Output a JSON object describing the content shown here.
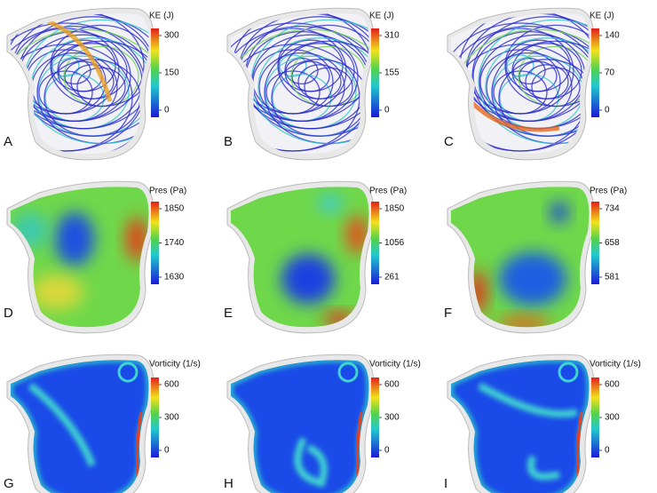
{
  "panels": [
    {
      "label": "A",
      "colorbar_title": "KE (J)",
      "ticks": [
        300,
        150,
        0
      ]
    },
    {
      "label": "B",
      "colorbar_title": "KE (J)",
      "ticks": [
        310,
        155,
        0
      ]
    },
    {
      "label": "C",
      "colorbar_title": "KE (J)",
      "ticks": [
        140,
        70,
        0
      ]
    },
    {
      "label": "D",
      "colorbar_title": "Pres (Pa)",
      "ticks": [
        1850,
        1740,
        1630
      ]
    },
    {
      "label": "E",
      "colorbar_title": "Pres (Pa)",
      "ticks": [
        1850,
        1056,
        261
      ]
    },
    {
      "label": "F",
      "colorbar_title": "Pres (Pa)",
      "ticks": [
        734,
        658,
        581
      ]
    },
    {
      "label": "G",
      "colorbar_title": "Vorticity (1/s)",
      "ticks": [
        600,
        300,
        0
      ]
    },
    {
      "label": "H",
      "colorbar_title": "Vorticity (1/s)",
      "ticks": [
        600,
        300,
        0
      ]
    },
    {
      "label": "I",
      "colorbar_title": "Vorticity (1/s)",
      "ticks": [
        600,
        300,
        0
      ]
    }
  ]
}
